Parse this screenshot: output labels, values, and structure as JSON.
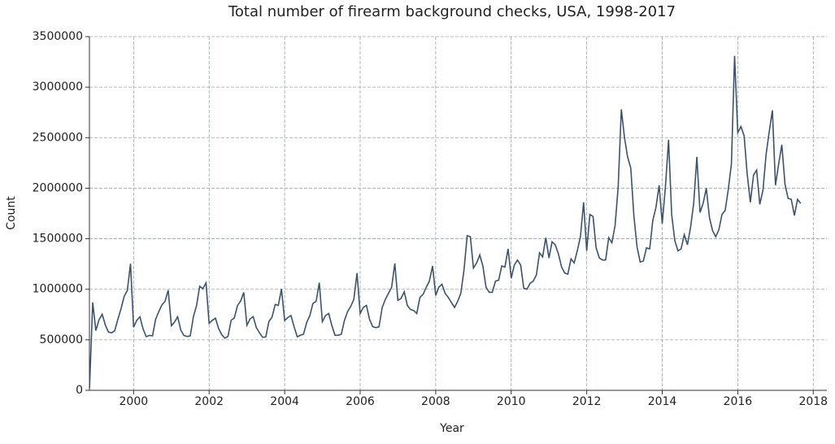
{
  "chart_data": {
    "type": "line",
    "title": "Total number of firearm background checks, USA, 1998-2017",
    "xlabel": "Year",
    "ylabel": "Count",
    "color": "#3b536d",
    "grid": true,
    "xlim": [
      1998.83,
      2018.36
    ],
    "xticks": [
      2000,
      2002,
      2004,
      2006,
      2008,
      2010,
      2012,
      2014,
      2016,
      2018
    ],
    "ylim": [
      0,
      3500000
    ],
    "yticks": [
      0,
      500000,
      1000000,
      1500000,
      2000000,
      2500000,
      3000000,
      3500000
    ],
    "x": [
      1998.833,
      1998.917,
      1999.0,
      1999.083,
      1999.167,
      1999.25,
      1999.333,
      1999.417,
      1999.5,
      1999.583,
      1999.667,
      1999.75,
      1999.833,
      1999.917,
      2000.0,
      2000.083,
      2000.167,
      2000.25,
      2000.333,
      2000.417,
      2000.5,
      2000.583,
      2000.667,
      2000.75,
      2000.833,
      2000.917,
      2001.0,
      2001.083,
      2001.167,
      2001.25,
      2001.333,
      2001.417,
      2001.5,
      2001.583,
      2001.667,
      2001.75,
      2001.833,
      2001.917,
      2002.0,
      2002.083,
      2002.167,
      2002.25,
      2002.333,
      2002.417,
      2002.5,
      2002.583,
      2002.667,
      2002.75,
      2002.833,
      2002.917,
      2003.0,
      2003.083,
      2003.167,
      2003.25,
      2003.333,
      2003.417,
      2003.5,
      2003.583,
      2003.667,
      2003.75,
      2003.833,
      2003.917,
      2004.0,
      2004.083,
      2004.167,
      2004.25,
      2004.333,
      2004.417,
      2004.5,
      2004.583,
      2004.667,
      2004.75,
      2004.833,
      2004.917,
      2005.0,
      2005.083,
      2005.167,
      2005.25,
      2005.333,
      2005.417,
      2005.5,
      2005.583,
      2005.667,
      2005.75,
      2005.833,
      2005.917,
      2006.0,
      2006.083,
      2006.167,
      2006.25,
      2006.333,
      2006.417,
      2006.5,
      2006.583,
      2006.667,
      2006.75,
      2006.833,
      2006.917,
      2007.0,
      2007.083,
      2007.167,
      2007.25,
      2007.333,
      2007.417,
      2007.5,
      2007.583,
      2007.667,
      2007.75,
      2007.833,
      2007.917,
      2008.0,
      2008.083,
      2008.167,
      2008.25,
      2008.333,
      2008.417,
      2008.5,
      2008.583,
      2008.667,
      2008.75,
      2008.833,
      2008.917,
      2009.0,
      2009.083,
      2009.167,
      2009.25,
      2009.333,
      2009.417,
      2009.5,
      2009.583,
      2009.667,
      2009.75,
      2009.833,
      2009.917,
      2010.0,
      2010.083,
      2010.167,
      2010.25,
      2010.333,
      2010.417,
      2010.5,
      2010.583,
      2010.667,
      2010.75,
      2010.833,
      2010.917,
      2011.0,
      2011.083,
      2011.167,
      2011.25,
      2011.333,
      2011.417,
      2011.5,
      2011.583,
      2011.667,
      2011.75,
      2011.833,
      2011.917,
      2012.0,
      2012.083,
      2012.167,
      2012.25,
      2012.333,
      2012.417,
      2012.5,
      2012.583,
      2012.667,
      2012.75,
      2012.833,
      2012.917,
      2013.0,
      2013.083,
      2013.167,
      2013.25,
      2013.333,
      2013.417,
      2013.5,
      2013.583,
      2013.667,
      2013.75,
      2013.833,
      2013.917,
      2014.0,
      2014.083,
      2014.167,
      2014.25,
      2014.333,
      2014.417,
      2014.5,
      2014.583,
      2014.667,
      2014.75,
      2014.833,
      2014.917,
      2015.0,
      2015.083,
      2015.167,
      2015.25,
      2015.333,
      2015.417,
      2015.5,
      2015.583,
      2015.667,
      2015.75,
      2015.833,
      2015.917,
      2016.0,
      2016.083,
      2016.167,
      2016.25,
      2016.333,
      2016.417,
      2016.5,
      2016.583,
      2016.667,
      2016.75,
      2016.833,
      2016.917,
      2017.0,
      2017.083,
      2017.167,
      2017.25,
      2017.333,
      2017.417,
      2017.5,
      2017.583,
      2017.667
    ],
    "values": [
      21000,
      870000,
      591000,
      696000,
      753000,
      647000,
      576000,
      569000,
      590000,
      703000,
      809000,
      929000,
      988000,
      1253000,
      625000,
      693000,
      727000,
      609000,
      531000,
      543000,
      540000,
      703000,
      780000,
      846000,
      881000,
      991000,
      640000,
      675000,
      728000,
      595000,
      543000,
      533000,
      539000,
      729000,
      840000,
      1029000,
      1006000,
      1063000,
      663000,
      693000,
      714000,
      614000,
      551000,
      516000,
      534000,
      693000,
      716000,
      838000,
      883000,
      968000,
      644000,
      706000,
      730000,
      620000,
      570000,
      525000,
      528000,
      680000,
      725000,
      850000,
      840000,
      1003000,
      690000,
      720000,
      740000,
      630000,
      530000,
      545000,
      555000,
      670000,
      740000,
      860000,
      880000,
      1065000,
      680000,
      740000,
      760000,
      640000,
      545000,
      545000,
      555000,
      690000,
      780000,
      830000,
      900000,
      1160000,
      760000,
      820000,
      840000,
      700000,
      630000,
      620000,
      630000,
      820000,
      900000,
      960000,
      1020000,
      1255000,
      890000,
      910000,
      975000,
      840000,
      800000,
      790000,
      760000,
      920000,
      950000,
      1020000,
      1080000,
      1230000,
      940000,
      1020000,
      1050000,
      960000,
      920000,
      870000,
      820000,
      880000,
      960000,
      1190000,
      1530000,
      1520000,
      1210000,
      1260000,
      1340000,
      1230000,
      1020000,
      970000,
      970000,
      1080000,
      1090000,
      1230000,
      1220000,
      1400000,
      1110000,
      1240000,
      1290000,
      1240000,
      1010000,
      1000000,
      1060000,
      1080000,
      1140000,
      1360000,
      1320000,
      1510000,
      1310000,
      1470000,
      1440000,
      1350000,
      1220000,
      1160000,
      1150000,
      1300000,
      1260000,
      1380000,
      1520000,
      1860000,
      1380000,
      1740000,
      1720000,
      1410000,
      1310000,
      1290000,
      1290000,
      1510000,
      1460000,
      1630000,
      2010000,
      2780000,
      2500000,
      2310000,
      2200000,
      1720000,
      1420000,
      1270000,
      1280000,
      1410000,
      1400000,
      1680000,
      1810000,
      2030000,
      1650000,
      2010000,
      2480000,
      1740000,
      1480000,
      1380000,
      1400000,
      1540000,
      1440000,
      1610000,
      1850000,
      2310000,
      1760000,
      1850000,
      2000000,
      1710000,
      1580000,
      1520000,
      1590000,
      1740000,
      1780000,
      1990000,
      2240000,
      3310000,
      2550000,
      2610000,
      2520000,
      2140000,
      1860000,
      2130000,
      2180000,
      1840000,
      1980000,
      2330000,
      2560000,
      2770000,
      2030000,
      2240000,
      2430000,
      2040000,
      1900000,
      1890000,
      1730000,
      1890000,
      1850000
    ]
  }
}
